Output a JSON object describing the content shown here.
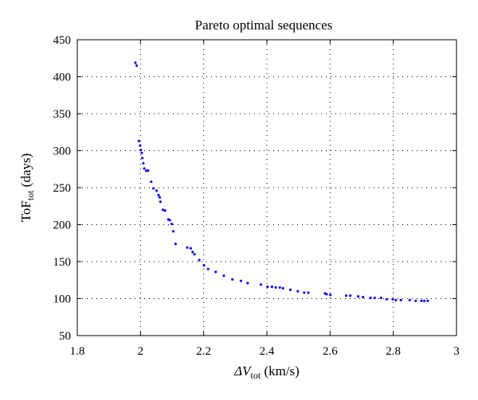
{
  "chart_data": {
    "type": "scatter",
    "title": "Pareto optimal sequences",
    "xlabel": {
      "main": "ΔV",
      "sub": "tot",
      "rest": " (km/s)"
    },
    "ylabel": {
      "main": "ToF",
      "sub": "tot",
      "rest": "  (days)"
    },
    "xlim": [
      1.8,
      3.0
    ],
    "ylim": [
      50,
      450
    ],
    "xticks": [
      1.8,
      2.0,
      2.2,
      2.4,
      2.6,
      2.8,
      3.0
    ],
    "xtick_labels": [
      "1.8",
      "2",
      "2.2",
      "2.4",
      "2.6",
      "2.8",
      "3"
    ],
    "yticks": [
      50,
      100,
      150,
      200,
      250,
      300,
      350,
      400,
      450
    ],
    "ytick_labels": [
      "50",
      "100",
      "150",
      "200",
      "250",
      "300",
      "350",
      "400",
      "450"
    ],
    "grid": true,
    "marker_color": "#1010ee",
    "series": [
      {
        "x": [
          1.984,
          1.988,
          1.995,
          1.999,
          2.001,
          2.004,
          2.006,
          2.009,
          2.012,
          2.018,
          2.024,
          2.034,
          2.041,
          2.051,
          2.057,
          2.061,
          2.063,
          2.071,
          2.078,
          2.088,
          2.093,
          2.099,
          2.104,
          2.111,
          2.148,
          2.159,
          2.165,
          2.171,
          2.186,
          2.201,
          2.214,
          2.238,
          2.264,
          2.291,
          2.318,
          2.339,
          2.381,
          2.402,
          2.416,
          2.428,
          2.441,
          2.451,
          2.474,
          2.498,
          2.518,
          2.531,
          2.584,
          2.589,
          2.601,
          2.651,
          2.664,
          2.689,
          2.704,
          2.728,
          2.741,
          2.761,
          2.779,
          2.798,
          2.808,
          2.824,
          2.852,
          2.871,
          2.889,
          2.898,
          2.909
        ],
        "y": [
          419,
          415,
          313,
          307,
          301,
          297,
          290,
          283,
          276,
          273,
          273,
          258,
          249,
          246,
          240,
          237,
          231,
          220,
          219,
          207,
          206,
          201,
          191,
          174,
          169,
          168,
          163,
          160,
          152,
          145,
          140,
          136,
          131,
          126,
          124,
          121,
          119,
          116,
          116,
          115,
          115,
          114,
          112,
          110,
          108,
          108,
          107,
          106,
          105,
          104,
          104,
          103,
          102,
          101,
          101,
          101,
          99,
          99,
          98,
          98,
          98,
          97,
          97,
          97,
          97
        ]
      }
    ]
  }
}
